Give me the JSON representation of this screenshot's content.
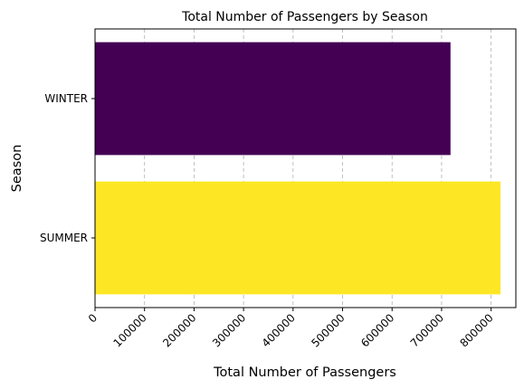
{
  "chart_data": {
    "type": "bar",
    "orientation": "horizontal",
    "title": "Total Number of Passengers by Season",
    "xlabel": "Total Number of Passengers",
    "ylabel": "Season",
    "categories": [
      "WINTER",
      "SUMMER"
    ],
    "values": [
      718000,
      819000
    ],
    "colors": [
      "#440154",
      "#fde725"
    ],
    "xlim": [
      0,
      850000
    ],
    "x_ticks": [
      0,
      100000,
      200000,
      300000,
      400000,
      500000,
      600000,
      700000,
      800000
    ],
    "x_tick_labels": [
      "0",
      "100000",
      "200000",
      "300000",
      "400000",
      "500000",
      "600000",
      "700000",
      "800000"
    ],
    "grid": "x-dashed"
  }
}
